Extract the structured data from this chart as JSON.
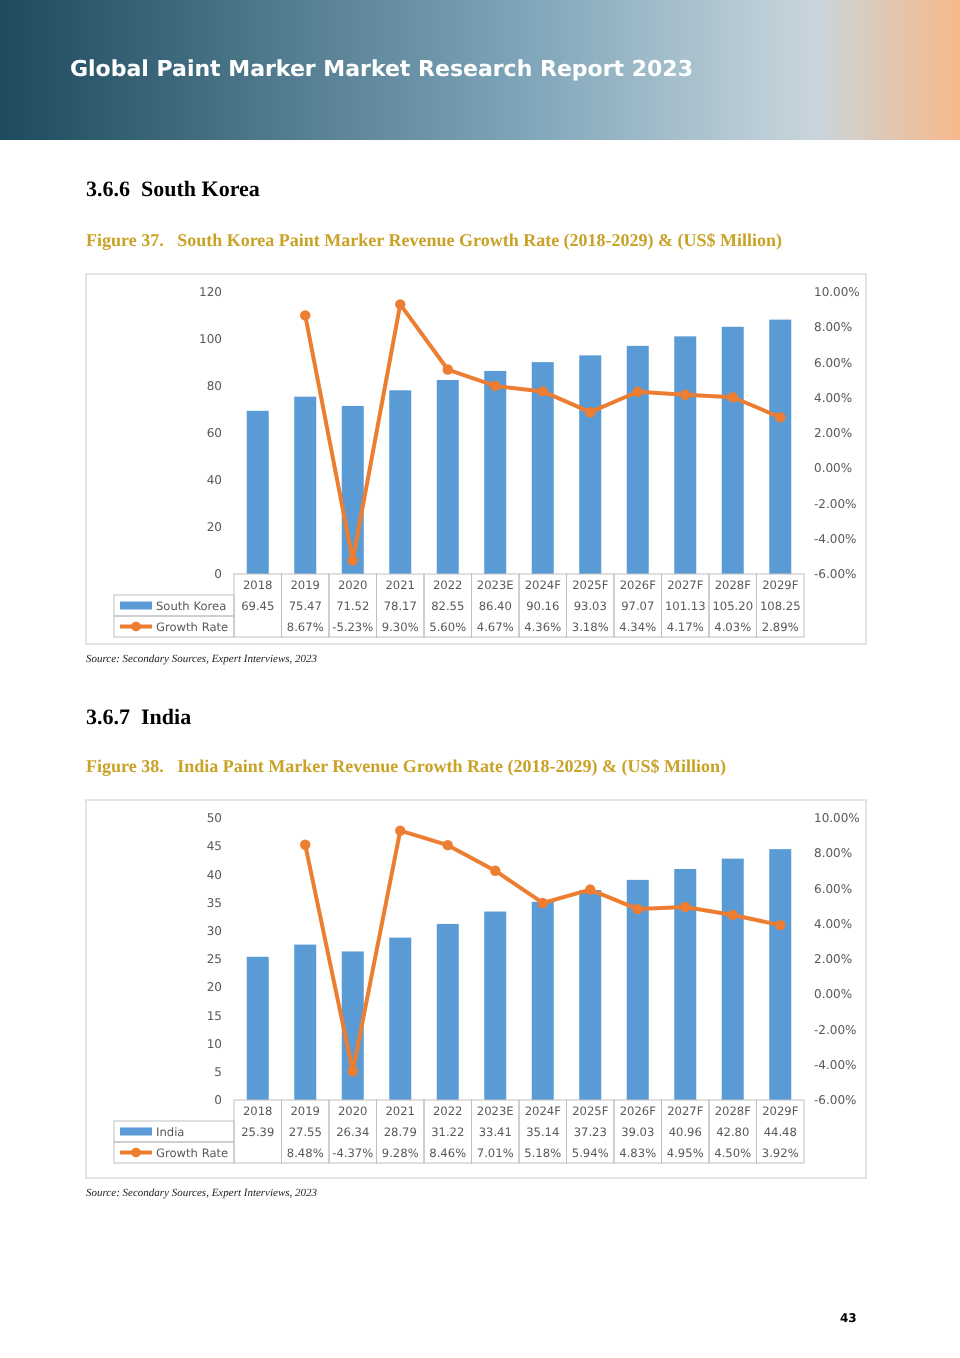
{
  "chart_data": [
    {
      "type": "bar",
      "title": "Figure 37.   South Korea Paint Marker Revenue Growth Rate (2018-2029) & (US$ Million)",
      "categories": [
        "2018",
        "2019",
        "2020",
        "2021",
        "2022",
        "2023E",
        "2024F",
        "2025F",
        "2026F",
        "2027F",
        "2028F",
        "2029F"
      ],
      "series": [
        {
          "name": "South Korea",
          "color": "#5b9bd5",
          "values": [
            69.45,
            75.47,
            71.52,
            78.17,
            82.55,
            86.4,
            90.16,
            93.03,
            97.07,
            101.13,
            105.2,
            108.25
          ],
          "value_labels": [
            "69.45",
            "75.47",
            "71.52",
            "78.17",
            "82.55",
            "86.40",
            "90.16",
            "93.03",
            "97.07",
            "101.13",
            "105.20",
            "108.25"
          ]
        },
        {
          "name": "Growth Rate",
          "type": "line",
          "axis": "y2",
          "color": "#ed7d31",
          "marker": "circle",
          "values": [
            null,
            8.67,
            -5.23,
            9.3,
            5.6,
            4.67,
            4.36,
            3.18,
            4.34,
            4.17,
            4.03,
            2.89
          ],
          "value_labels": [
            null,
            "8.67%",
            "-5.23%",
            "9.30%",
            "5.60%",
            "4.67%",
            "4.36%",
            "3.18%",
            "4.34%",
            "4.17%",
            "4.03%",
            "2.89%"
          ]
        }
      ],
      "ylim": [
        0,
        120
      ],
      "yticks": [
        0,
        20,
        40,
        60,
        80,
        100,
        120
      ],
      "y2lim": [
        -6,
        10
      ],
      "y2ticks": [
        {
          "value": -6,
          "label": "-6.00%"
        },
        {
          "value": -4,
          "label": "-4.00%"
        },
        {
          "value": -2,
          "label": "-2.00%"
        },
        {
          "value": 0,
          "label": "0.00%"
        },
        {
          "value": 2,
          "label": "2.00%"
        },
        {
          "value": 4,
          "label": "4.00%"
        },
        {
          "value": 6,
          "label": "6.00%"
        },
        {
          "value": 8,
          "label": "8.00%"
        },
        {
          "value": 10,
          "label": "10.00%"
        }
      ],
      "legend": "bottom",
      "annotations": [
        "Global Paint Marker Market Research Report 2023",
        "3.6.6  South Korea",
        "Source: Secondary Sources, Expert Interviews, 2023",
        "43"
      ]
    },
    {
      "type": "bar",
      "title": "Figure 38.   India Paint Marker Revenue Growth Rate (2018-2029) & (US$ Million)",
      "categories": [
        "2018",
        "2019",
        "2020",
        "2021",
        "2022",
        "2023E",
        "2024F",
        "2025F",
        "2026F",
        "2027F",
        "2028F",
        "2029F"
      ],
      "series": [
        {
          "name": "India",
          "color": "#5b9bd5",
          "values": [
            25.39,
            27.55,
            26.34,
            28.79,
            31.22,
            33.41,
            35.14,
            37.23,
            39.03,
            40.96,
            42.8,
            44.48
          ],
          "value_labels": [
            "25.39",
            "27.55",
            "26.34",
            "28.79",
            "31.22",
            "33.41",
            "35.14",
            "37.23",
            "39.03",
            "40.96",
            "42.80",
            "44.48"
          ]
        },
        {
          "name": "Growth Rate",
          "type": "line",
          "axis": "y2",
          "color": "#ed7d31",
          "marker": "circle",
          "values": [
            null,
            8.48,
            -4.37,
            9.28,
            8.46,
            7.01,
            5.18,
            5.94,
            4.83,
            4.95,
            4.5,
            3.92
          ],
          "value_labels": [
            null,
            "8.48%",
            "-4.37%",
            "9.28%",
            "8.46%",
            "7.01%",
            "5.18%",
            "5.94%",
            "4.83%",
            "4.95%",
            "4.50%",
            "3.92%"
          ]
        }
      ],
      "ylim": [
        0,
        50
      ],
      "yticks": [
        0,
        5,
        10,
        15,
        20,
        25,
        30,
        35,
        40,
        45,
        50
      ],
      "y2lim": [
        -6,
        10
      ],
      "y2ticks": [
        {
          "value": -6,
          "label": "-6.00%"
        },
        {
          "value": -4,
          "label": "-4.00%"
        },
        {
          "value": -2,
          "label": "-2.00%"
        },
        {
          "value": 0,
          "label": "0.00%"
        },
        {
          "value": 2,
          "label": "2.00%"
        },
        {
          "value": 4,
          "label": "4.00%"
        },
        {
          "value": 6,
          "label": "6.00%"
        },
        {
          "value": 8,
          "label": "8.00%"
        },
        {
          "value": 10,
          "label": "10.00%"
        }
      ],
      "legend": "bottom",
      "annotations": [
        "3.6.7  India",
        "Source: Secondary Sources, Expert Interviews, 2023"
      ]
    }
  ]
}
